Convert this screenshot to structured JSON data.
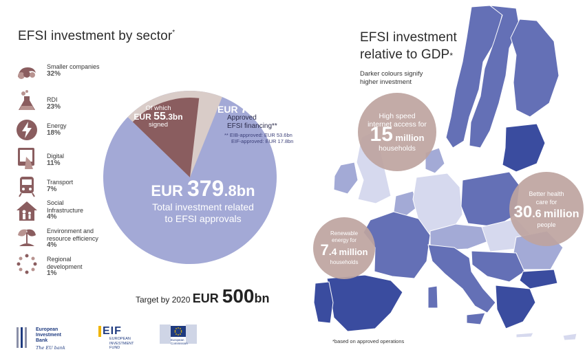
{
  "left_title": "EFSI investment by sector",
  "left_title_mark": "*",
  "sectors": [
    {
      "icon": "smaller-companies-icon",
      "name": "Smaller companies",
      "pct": "32%"
    },
    {
      "icon": "rdi-flask-icon",
      "name": "RDI",
      "pct": "23%"
    },
    {
      "icon": "energy-bolt-icon",
      "name": "Energy",
      "pct": "18%"
    },
    {
      "icon": "digital-tablet-icon",
      "name": "Digital",
      "pct": "11%"
    },
    {
      "icon": "transport-train-icon",
      "name": "Transport",
      "pct": "7%"
    },
    {
      "icon": "social-infrastructure-icon",
      "name": "Social\nInfrastructure",
      "pct": "4%"
    },
    {
      "icon": "environment-tree-icon",
      "name": "Environment and\nresource efficiency",
      "pct": "4%"
    },
    {
      "icon": "regional-development-icon",
      "name": "Regional\ndevelopment",
      "pct": "1%"
    }
  ],
  "pie": {
    "signed_prefix": "Of which",
    "signed_cur": "EUR",
    "signed_int": "55",
    "signed_dec": ".3bn",
    "signed_suffix": "signed",
    "approved_cur": "EUR",
    "approved_int": "71",
    "approved_dec": ".4bn",
    "approved_desc1": "Approved",
    "approved_desc2": "EFSI financing**",
    "eib_line": "** EIB-approved: EUR 53.6bn",
    "eif_line": "EIF-approved: EUR 17.8bn",
    "total_cur": "EUR",
    "total_int": "379",
    "total_dec": ".8bn",
    "total_desc1": "Total investment related",
    "total_desc2": "to EFSI approvals",
    "values": {
      "total": 379.8,
      "approved": 71.4,
      "signed": 55.3
    },
    "colors": {
      "total": "#a3a9d6",
      "approved": "#d9ccc8",
      "signed": "#8a5d5f"
    }
  },
  "target": {
    "prefix": "Target by 2020",
    "cur": "EUR",
    "int": "500",
    "suffix": "bn"
  },
  "right_title_line1": "EFSI investment",
  "right_title_line2": "relative to GDP",
  "right_title_mark": "*",
  "subtitle": "Darker colours signify higher investment",
  "bubbles": {
    "internet": {
      "line1": "High speed",
      "line2": "internet access for",
      "num": "15",
      "unit": "million",
      "tail": "households"
    },
    "health": {
      "line1": "Better health",
      "line2": "care for",
      "num_a": "30",
      "num_b": ".6",
      "unit": "million",
      "tail": "people"
    },
    "renewable": {
      "line1": "Renewable",
      "line2": "energy for",
      "num_a": "7",
      "num_b": ".4",
      "unit": "million",
      "tail": "households"
    }
  },
  "map_colors": {
    "dark": "#3a4c9f",
    "mid": "#6470b6",
    "light": "#a3aad6",
    "pale": "#d6d9ee"
  },
  "footnote": "*based on approved operations",
  "logos": {
    "eib": {
      "line1": "European",
      "line2": "Investment",
      "line3": "Bank",
      "tagline": "The EU bank"
    },
    "eif": {
      "mark": "EIF",
      "line1": "EUROPEAN",
      "line2": "INVESTMENT",
      "line3": "FUND"
    },
    "ec": {
      "line1": "European",
      "line2": "Commission"
    }
  }
}
